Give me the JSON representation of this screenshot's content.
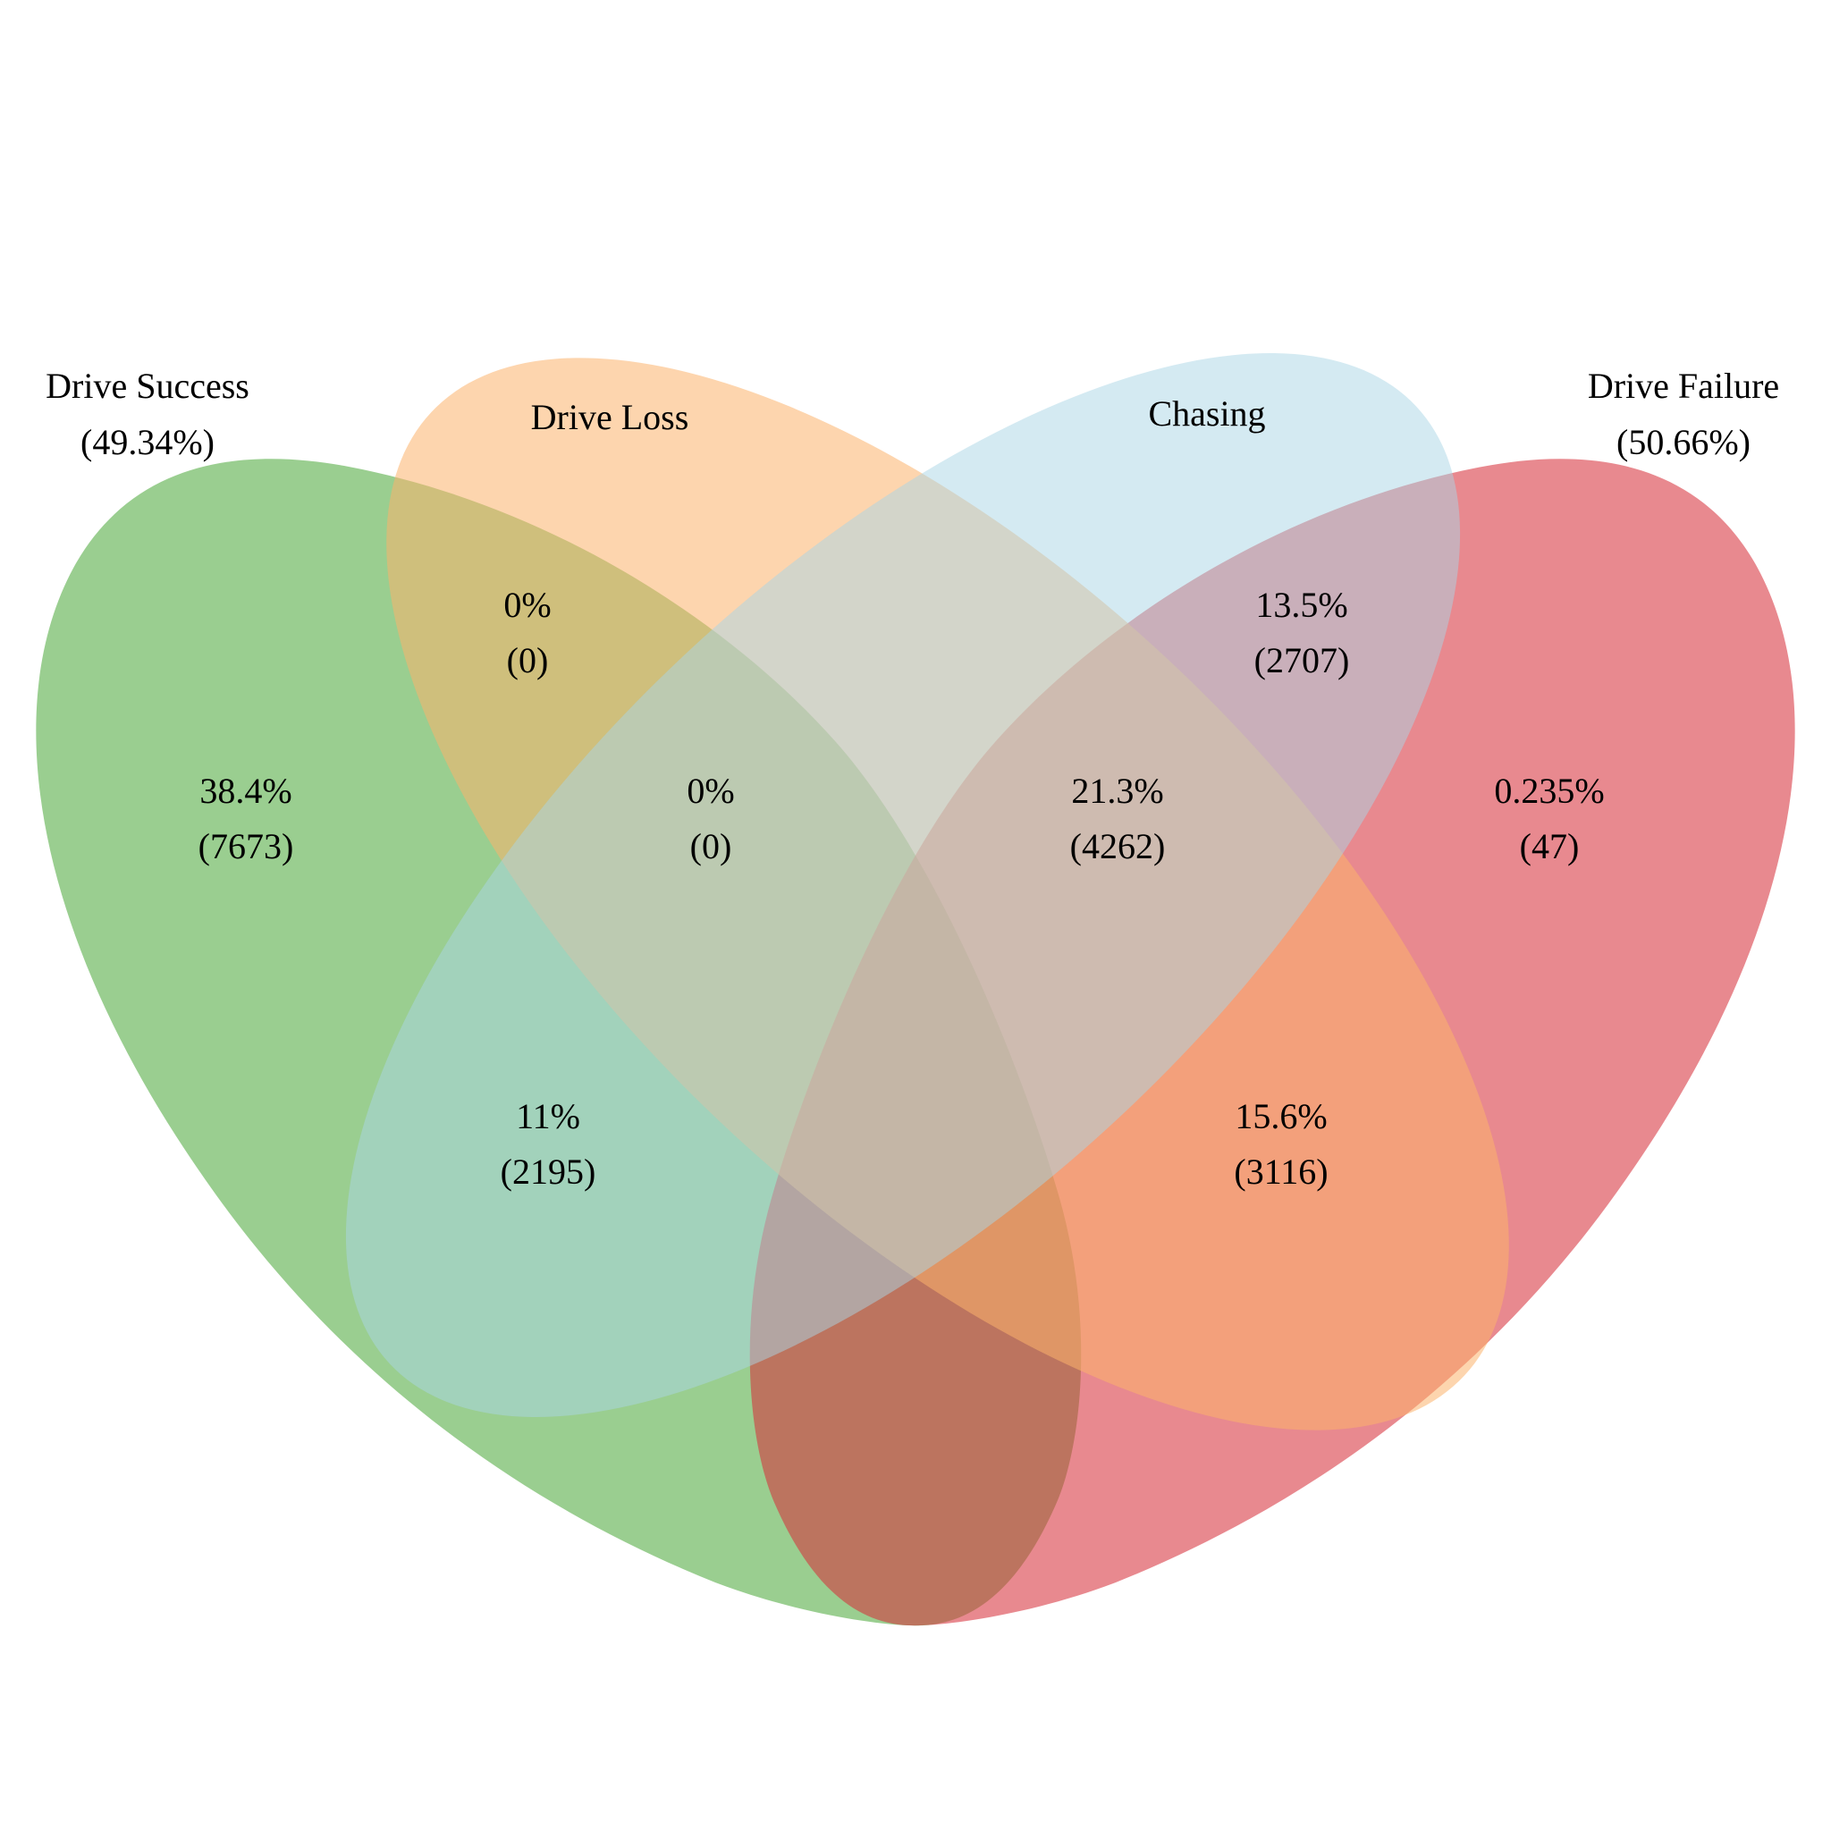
{
  "sets": [
    {
      "id": "drive_success",
      "name": "Drive Success",
      "share": "(49.34%)",
      "color": "#4da83c",
      "opacity": 0.57
    },
    {
      "id": "drive_loss",
      "name": "Drive Loss",
      "share": "",
      "color": "#fbb36c",
      "opacity": 0.55
    },
    {
      "id": "chasing",
      "name": "Chasing",
      "share": "",
      "color": "#a9d6e5",
      "opacity": 0.5
    },
    {
      "id": "drive_failure",
      "name": "Drive Failure",
      "share": "(50.66%)",
      "color": "#d7303a",
      "opacity": 0.57
    }
  ],
  "regions": [
    {
      "id": "success_only",
      "sets": [
        "Drive Success"
      ],
      "percent": "38.4%",
      "count": "(7673)"
    },
    {
      "id": "success_loss",
      "sets": [
        "Drive Success",
        "Drive Loss"
      ],
      "percent": "0%",
      "count": "(0)"
    },
    {
      "id": "success_loss_chasing",
      "sets": [
        "Drive Success",
        "Drive Loss",
        "Chasing"
      ],
      "percent": "0%",
      "count": "(0)"
    },
    {
      "id": "success_chasing",
      "sets": [
        "Drive Success",
        "Chasing"
      ],
      "percent": "11%",
      "count": "(2195)"
    },
    {
      "id": "failure_loss_chasing",
      "sets": [
        "Drive Failure",
        "Drive Loss",
        "Chasing"
      ],
      "percent": "21.3%",
      "count": "(4262)"
    },
    {
      "id": "failure_chasing",
      "sets": [
        "Drive Failure",
        "Chasing"
      ],
      "percent": "13.5%",
      "count": "(2707)"
    },
    {
      "id": "failure_loss",
      "sets": [
        "Drive Failure",
        "Drive Loss"
      ],
      "percent": "15.6%",
      "count": "(3116)"
    },
    {
      "id": "failure_only",
      "sets": [
        "Drive Failure"
      ],
      "percent": "0.235%",
      "count": "(47)"
    }
  ]
}
